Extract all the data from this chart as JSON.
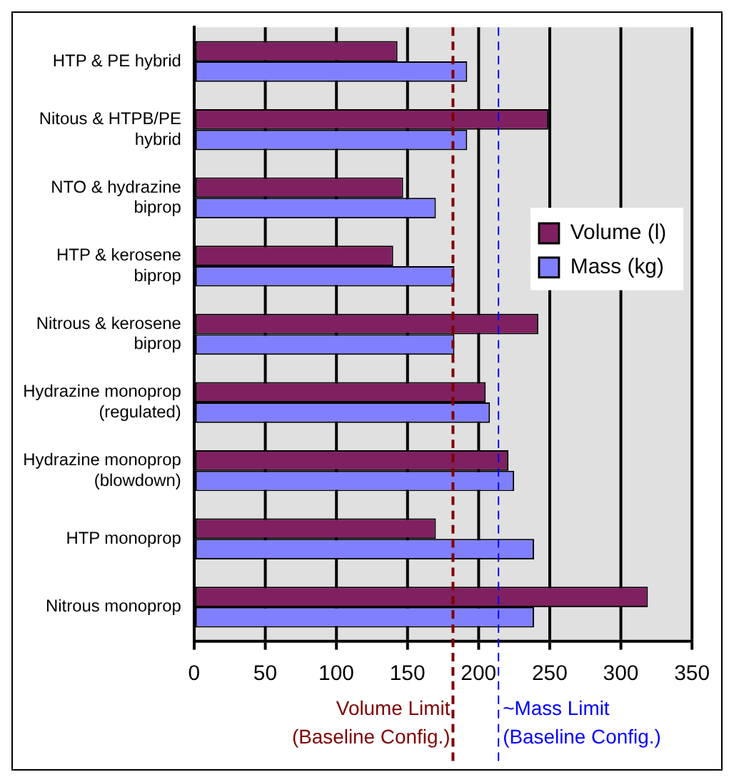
{
  "chart_data": {
    "type": "bar",
    "orientation": "horizontal",
    "categories": [
      "HTP & PE hybrid",
      "Nitous & HTPB/PE hybrid",
      "NTO & hydrazine biprop",
      "HTP & kerosene biprop",
      "Nitrous & kerosene biprop",
      "Hydrazine monoprop (regulated)",
      "Hydrazine monoprop (blowdown)",
      "HTP monoprop",
      "Nitrous monoprop"
    ],
    "series": [
      {
        "name": "Volume (l)",
        "color": "#7f2060",
        "values": [
          143,
          249,
          147,
          140,
          242,
          205,
          221,
          170,
          319
        ]
      },
      {
        "name": "Mass (kg)",
        "color": "#8080ff",
        "values": [
          192,
          192,
          170,
          183,
          183,
          208,
          225,
          239,
          239
        ]
      }
    ],
    "xlim": [
      0,
      350
    ],
    "xticks": [
      0,
      50,
      100,
      150,
      200,
      250,
      300,
      350
    ],
    "grid": "x",
    "legend": "right",
    "ref_lines": [
      {
        "axis": "x",
        "value": 182,
        "label": "Volume Limit\n(Baseline Config.)",
        "color": "#800000",
        "line_style": "dashed"
      },
      {
        "axis": "x",
        "value": 214,
        "label": "~Mass Limit\n(Baseline Config.)",
        "color": "#0000ff",
        "line_style": "dashed"
      }
    ]
  }
}
